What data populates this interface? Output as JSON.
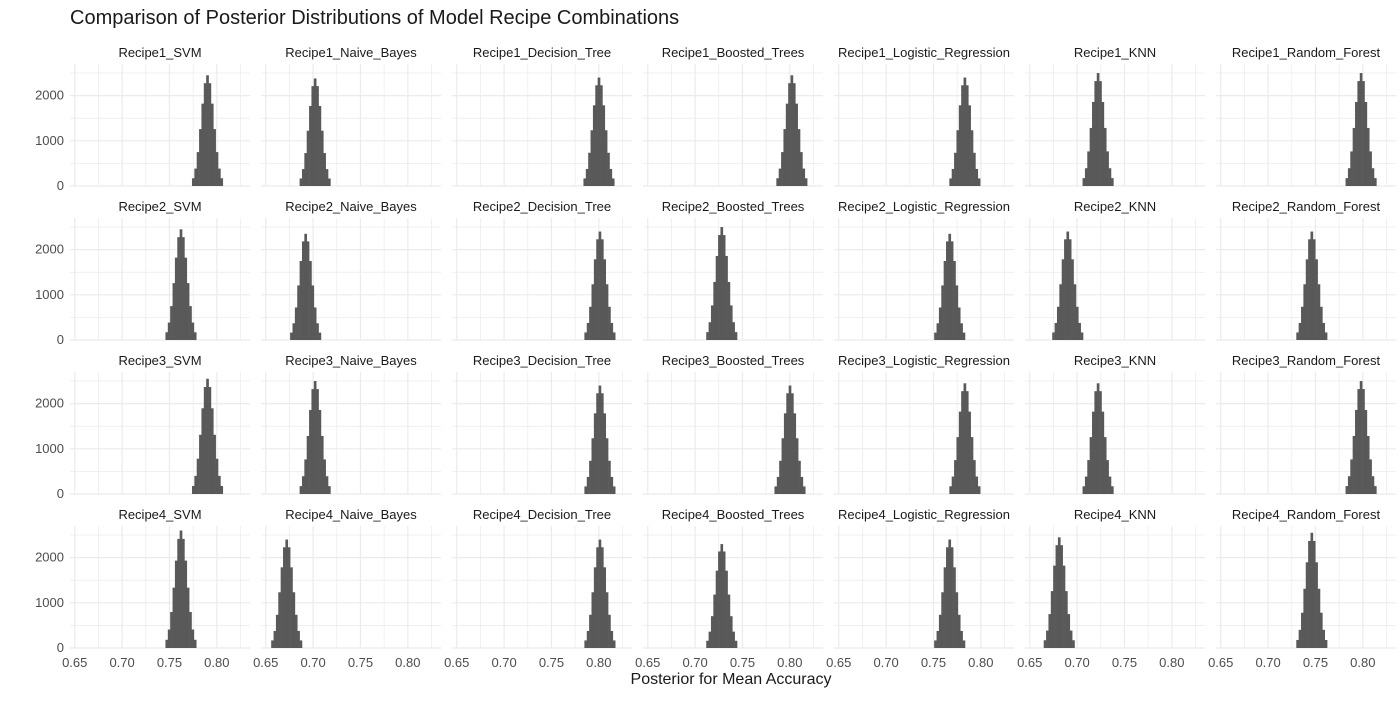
{
  "chart_data": {
    "type": "histogram",
    "title": "Comparison of Posterior Distributions of Model Recipe Combinations",
    "xlabel": "Posterior for Mean Accuracy",
    "ylabel": "",
    "xlim": [
      0.645,
      0.835
    ],
    "ylim": [
      0,
      2700
    ],
    "x_ticks": [
      0.65,
      0.7,
      0.75,
      0.8
    ],
    "x_tick_labels": [
      "0.65",
      "0.70",
      "0.75",
      "0.80"
    ],
    "y_ticks": [
      0,
      1000,
      2000
    ],
    "y_tick_labels": [
      "0",
      "1000",
      "2000"
    ],
    "grid": true,
    "bar_color": "#595959",
    "grid_color": "#ebebeb",
    "bin_width": 0.0025,
    "facet_layout": {
      "rows": 4,
      "cols": 7
    },
    "facets": [
      {
        "label": "Recipe1_SVM",
        "mean": 0.79,
        "peak": 2450
      },
      {
        "label": "Recipe1_Naive_Bayes",
        "mean": 0.702,
        "peak": 2380
      },
      {
        "label": "Recipe1_Decision_Tree",
        "mean": 0.8,
        "peak": 2400
      },
      {
        "label": "Recipe1_Boosted_Trees",
        "mean": 0.802,
        "peak": 2450
      },
      {
        "label": "Recipe1_Logistic_Regression",
        "mean": 0.783,
        "peak": 2400
      },
      {
        "label": "Recipe1_KNN",
        "mean": 0.722,
        "peak": 2500
      },
      {
        "label": "Recipe1_Random_Forest",
        "mean": 0.798,
        "peak": 2500
      },
      {
        "label": "Recipe2_SVM",
        "mean": 0.762,
        "peak": 2450
      },
      {
        "label": "Recipe2_Naive_Bayes",
        "mean": 0.692,
        "peak": 2350
      },
      {
        "label": "Recipe2_Decision_Tree",
        "mean": 0.801,
        "peak": 2400
      },
      {
        "label": "Recipe2_Boosted_Trees",
        "mean": 0.728,
        "peak": 2500
      },
      {
        "label": "Recipe2_Logistic_Regression",
        "mean": 0.767,
        "peak": 2350
      },
      {
        "label": "Recipe2_KNN",
        "mean": 0.69,
        "peak": 2400
      },
      {
        "label": "Recipe2_Random_Forest",
        "mean": 0.746,
        "peak": 2400
      },
      {
        "label": "Recipe3_SVM",
        "mean": 0.79,
        "peak": 2550
      },
      {
        "label": "Recipe3_Naive_Bayes",
        "mean": 0.702,
        "peak": 2500
      },
      {
        "label": "Recipe3_Decision_Tree",
        "mean": 0.801,
        "peak": 2400
      },
      {
        "label": "Recipe3_Boosted_Trees",
        "mean": 0.8,
        "peak": 2400
      },
      {
        "label": "Recipe3_Logistic_Regression",
        "mean": 0.783,
        "peak": 2450
      },
      {
        "label": "Recipe3_KNN",
        "mean": 0.722,
        "peak": 2450
      },
      {
        "label": "Recipe3_Random_Forest",
        "mean": 0.798,
        "peak": 2500
      },
      {
        "label": "Recipe4_SVM",
        "mean": 0.762,
        "peak": 2600
      },
      {
        "label": "Recipe4_Naive_Bayes",
        "mean": 0.672,
        "peak": 2400
      },
      {
        "label": "Recipe4_Decision_Tree",
        "mean": 0.801,
        "peak": 2400
      },
      {
        "label": "Recipe4_Boosted_Trees",
        "mean": 0.728,
        "peak": 2300
      },
      {
        "label": "Recipe4_Logistic_Regression",
        "mean": 0.767,
        "peak": 2400
      },
      {
        "label": "Recipe4_KNN",
        "mean": 0.681,
        "peak": 2450
      },
      {
        "label": "Recipe4_Random_Forest",
        "mean": 0.746,
        "peak": 2550
      }
    ]
  }
}
